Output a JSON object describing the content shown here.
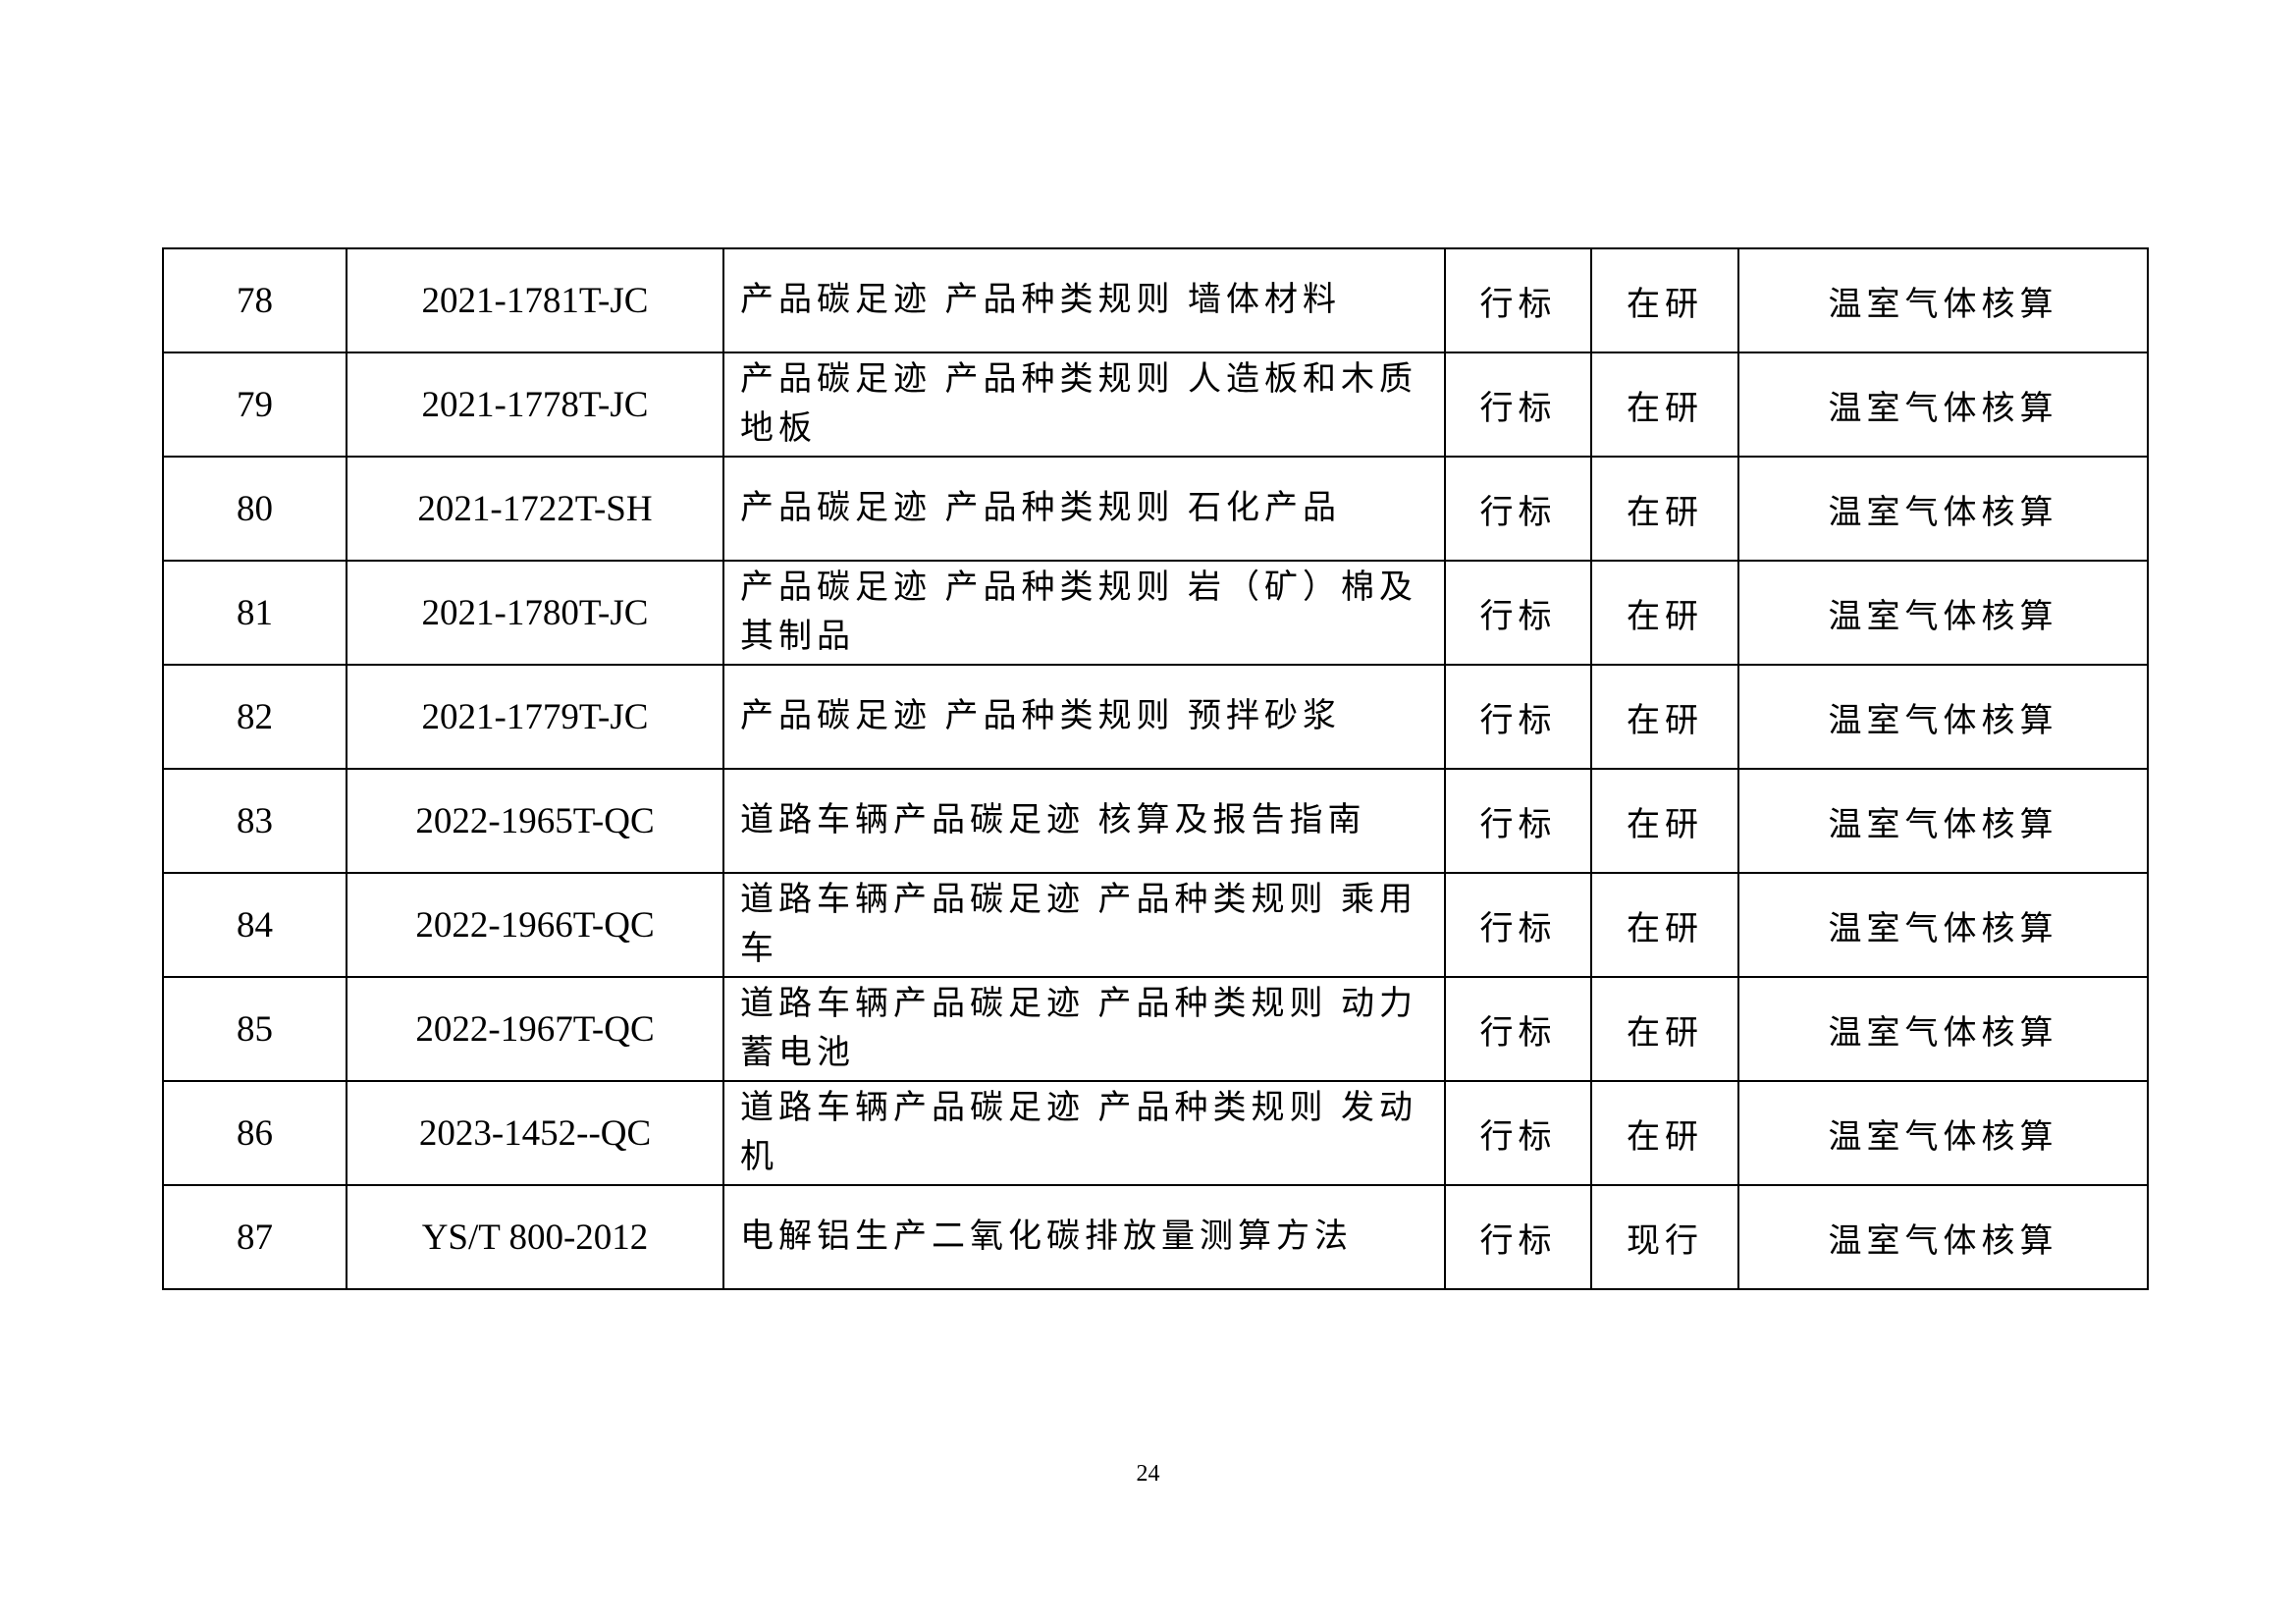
{
  "table": {
    "rows": [
      {
        "no": "78",
        "code": "2021-1781T-JC",
        "title_lines": [
          "产品碳足迹 产品种类规则 墙体材料"
        ],
        "type": "行标",
        "status": "在研",
        "category": "温室气体核算"
      },
      {
        "no": "79",
        "code": "2021-1778T-JC",
        "title_lines": [
          "产品碳足迹 产品种类规则 人造板和木质",
          "地板"
        ],
        "type": "行标",
        "status": "在研",
        "category": "温室气体核算"
      },
      {
        "no": "80",
        "code": "2021-1722T-SH",
        "title_lines": [
          "产品碳足迹 产品种类规则 石化产品"
        ],
        "type": "行标",
        "status": "在研",
        "category": "温室气体核算"
      },
      {
        "no": "81",
        "code": "2021-1780T-JC",
        "title_lines": [
          "产品碳足迹 产品种类规则 岩（矿）棉及",
          "其制品"
        ],
        "type": "行标",
        "status": "在研",
        "category": "温室气体核算"
      },
      {
        "no": "82",
        "code": "2021-1779T-JC",
        "title_lines": [
          "产品碳足迹 产品种类规则 预拌砂浆"
        ],
        "type": "行标",
        "status": "在研",
        "category": "温室气体核算"
      },
      {
        "no": "83",
        "code": "2022-1965T-QC",
        "title_lines": [
          "道路车辆产品碳足迹 核算及报告指南"
        ],
        "type": "行标",
        "status": "在研",
        "category": "温室气体核算"
      },
      {
        "no": "84",
        "code": "2022-1966T-QC",
        "title_lines": [
          "道路车辆产品碳足迹 产品种类规则 乘用",
          "车"
        ],
        "type": "行标",
        "status": "在研",
        "category": "温室气体核算"
      },
      {
        "no": "85",
        "code": "2022-1967T-QC",
        "title_lines": [
          "道路车辆产品碳足迹 产品种类规则 动力",
          "蓄电池"
        ],
        "type": "行标",
        "status": "在研",
        "category": "温室气体核算"
      },
      {
        "no": "86",
        "code": "2023-1452--QC",
        "title_lines": [
          "道路车辆产品碳足迹 产品种类规则 发动",
          "机"
        ],
        "type": "行标",
        "status": "在研",
        "category": "温室气体核算"
      },
      {
        "no": "87",
        "code": "YS/T 800-2012",
        "title_lines": [
          "电解铝生产二氧化碳排放量测算方法"
        ],
        "type": "行标",
        "status": "现行",
        "category": "温室气体核算"
      }
    ]
  },
  "footer": {
    "page_number": "24"
  }
}
